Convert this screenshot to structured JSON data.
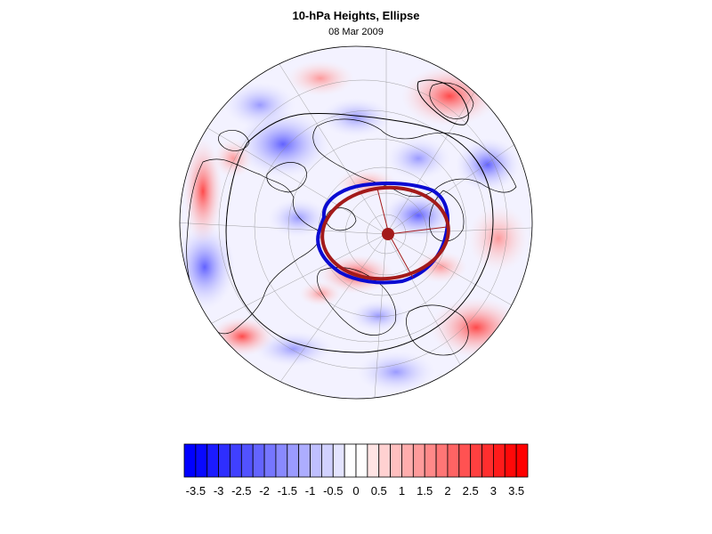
{
  "figure": {
    "title": "10-hPa Heights, Ellipse",
    "subtitle": "08 Mar 2009"
  },
  "map": {
    "projection": "north-polar-orthographic",
    "field": "10-hPa height anomaly (shaded)",
    "overlays": [
      "coastlines",
      "lat-lon graticule",
      "black contour",
      "blue vortex edge",
      "red fitted ellipse",
      "red center dot"
    ]
  },
  "colorbar": {
    "levels": [
      -3.5,
      -3.25,
      -3,
      -2.75,
      -2.5,
      -2.25,
      -2,
      -1.75,
      -1.5,
      -1.25,
      -1,
      -0.75,
      -0.5,
      -0.25,
      0,
      0.25,
      0.5,
      0.75,
      1,
      1.25,
      1.5,
      1.75,
      2,
      2.25,
      2.5,
      2.75,
      3,
      3.25,
      3.5
    ],
    "tick_labels": [
      "-3.5",
      "-3",
      "-2.5",
      "-2",
      "-1.5",
      "-1",
      "-0.5",
      "0",
      "0.5",
      "1",
      "1.5",
      "2",
      "2.5",
      "3",
      "3.5"
    ],
    "negative_color": "#0000ff",
    "positive_color": "#ff0000",
    "neutral_color": "#ffffff"
  },
  "colors": {
    "vortex_edge": "#0a0ad2",
    "ellipse": "#a31a1a",
    "contour": "#000000"
  }
}
